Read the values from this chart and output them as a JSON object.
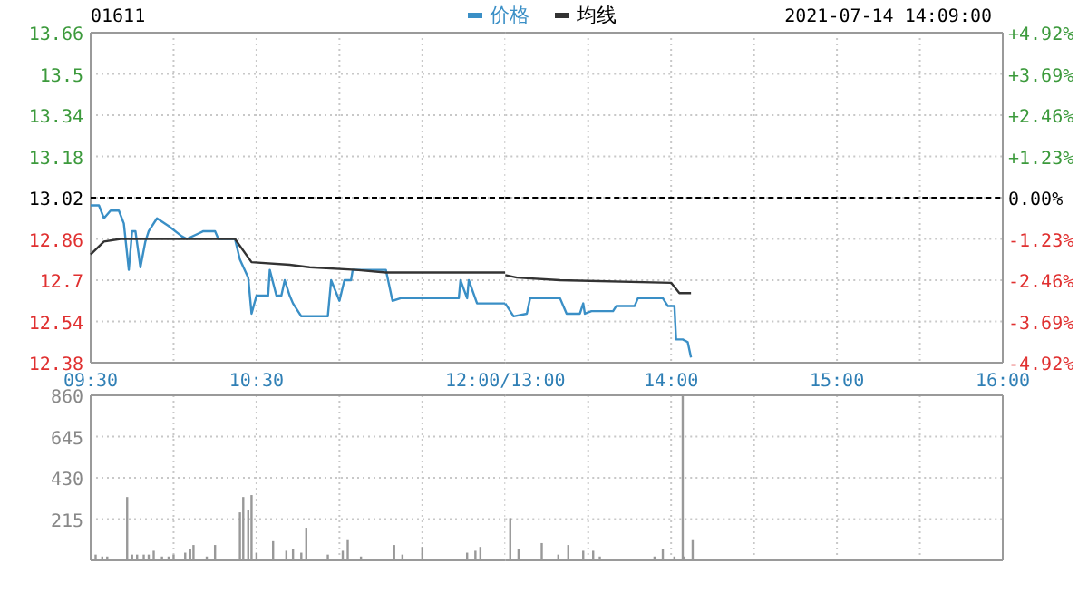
{
  "chart_data": [
    {
      "type": "line",
      "title": "01611",
      "legend": "top",
      "grid": true,
      "xlim": [
        9.5,
        12
      ],
      "xticks": [
        {
          "value": 9.5,
          "label": "09:30"
        },
        {
          "value": 10,
          "label": null
        },
        {
          "value": 10.5,
          "label": "10:30"
        },
        {
          "value": 11,
          "label": null
        },
        {
          "value": 11.5,
          "label": null
        },
        {
          "value": 12,
          "label": "12:00/13:00"
        }
      ],
      "ylim": [
        12.38,
        13.66
      ],
      "yticks": [
        12.38,
        12.54,
        12.7,
        12.86,
        13.02,
        13.18,
        13.34,
        13.5,
        13.66
      ],
      "ref_lines": [
        {
          "axis": "y",
          "value": 13.02,
          "color": "#000000",
          "line_style": "dashed"
        }
      ],
      "series": [
        {
          "name": "价格",
          "color": "#3a8fc6",
          "x": [
            9.5,
            9.55,
            9.58,
            9.62,
            9.67,
            9.7,
            9.73,
            9.75,
            9.77,
            9.8,
            9.83,
            9.85,
            9.9,
            9.97,
            10.05,
            10.08,
            10.18,
            10.25,
            10.27,
            10.37,
            10.4,
            10.45,
            10.47,
            10.5,
            10.57,
            10.58,
            10.62,
            10.65,
            10.67,
            10.7,
            10.72,
            10.77,
            10.93,
            10.95,
            11,
            11.03,
            11.07,
            11.08,
            11.28,
            11.32,
            11.37,
            11.72,
            11.73,
            11.77,
            11.78,
            11.83,
            12
          ],
          "values": [
            12.99,
            12.99,
            12.94,
            12.97,
            12.97,
            12.92,
            12.74,
            12.89,
            12.89,
            12.75,
            12.85,
            12.89,
            12.94,
            12.91,
            12.87,
            12.86,
            12.89,
            12.89,
            12.86,
            12.86,
            12.78,
            12.71,
            12.57,
            12.64,
            12.64,
            12.74,
            12.64,
            12.64,
            12.7,
            12.64,
            12.61,
            12.56,
            12.56,
            12.7,
            12.62,
            12.7,
            12.7,
            12.74,
            12.74,
            12.62,
            12.63,
            12.63,
            12.7,
            12.63,
            12.7,
            12.61,
            12.61
          ]
        },
        {
          "name": "均线",
          "color": "#333333",
          "x": [
            9.5,
            9.58,
            9.68,
            10.37,
            10.47,
            10.7,
            10.82,
            11.1,
            11.28,
            12
          ],
          "values": [
            12.8,
            12.85,
            12.86,
            12.86,
            12.77,
            12.76,
            12.75,
            12.74,
            12.73,
            12.73
          ]
        }
      ]
    },
    {
      "type": "line",
      "subtitle": "2021-07-14 14:09:00",
      "grid": true,
      "tick_labels": "x",
      "xlim": [
        13,
        16
      ],
      "xticks": [
        {
          "value": 13.5,
          "label": null
        },
        {
          "value": 14,
          "label": "14:00"
        },
        {
          "value": 14.5,
          "label": null
        },
        {
          "value": 15,
          "label": "15:00"
        },
        {
          "value": 15.5,
          "label": null
        },
        {
          "value": 16,
          "label": "16:00"
        }
      ],
      "ylim": [
        12.38,
        13.66
      ],
      "yticks": [
        12.38,
        12.54,
        12.7,
        12.86,
        13.02,
        13.18,
        13.34,
        13.5,
        13.66
      ],
      "y2lim": [
        -4.92,
        4.92
      ],
      "y2ticks": [
        {
          "value": -4.92,
          "label": "-4.92%"
        },
        {
          "value": -3.69,
          "label": "-3.69%"
        },
        {
          "value": -2.46,
          "label": "-2.46%"
        },
        {
          "value": -1.23,
          "label": "-1.23%"
        },
        {
          "value": 0,
          "label": "0.00%"
        },
        {
          "value": 1.23,
          "label": "+1.23%"
        },
        {
          "value": 2.46,
          "label": "+2.46%"
        },
        {
          "value": 3.69,
          "label": "+3.69%"
        },
        {
          "value": 4.92,
          "label": "+4.92%"
        }
      ],
      "ref_lines": [
        {
          "axis": "y",
          "value": 13.02,
          "color": "#000000",
          "line_style": "dashed"
        }
      ],
      "series": [
        {
          "color": "#3a8fc6",
          "x": [
            13,
            13.05,
            13.13,
            13.15,
            13.33,
            13.37,
            13.45,
            13.47,
            13.48,
            13.52,
            13.65,
            13.67,
            13.78,
            13.8,
            13.95,
            13.98,
            14.02,
            14.03,
            14.07,
            14.1,
            14.12
          ],
          "values": [
            12.61,
            12.56,
            12.57,
            12.63,
            12.63,
            12.57,
            12.57,
            12.61,
            12.57,
            12.58,
            12.58,
            12.6,
            12.6,
            12.63,
            12.63,
            12.6,
            12.6,
            12.47,
            12.47,
            12.46,
            12.4
          ]
        },
        {
          "color": "#333333",
          "x": [
            13,
            13.07,
            13.33,
            14,
            14.05,
            14.12
          ],
          "values": [
            12.72,
            12.71,
            12.7,
            12.69,
            12.65,
            12.65
          ]
        }
      ]
    },
    {
      "type": "bar",
      "color": "#999999",
      "grid": true,
      "tick_labels": "y",
      "xlim": [
        9.5,
        12
      ],
      "xticks": [
        {
          "value": 9.5,
          "label": null
        },
        {
          "value": 10,
          "label": null
        },
        {
          "value": 10.5,
          "label": null
        },
        {
          "value": 11,
          "label": null
        },
        {
          "value": 11.5,
          "label": null
        },
        {
          "value": 12,
          "label": null
        }
      ],
      "ylim": [
        0,
        860
      ],
      "yticks": [
        215,
        430,
        645,
        860
      ],
      "x": [
        9.53,
        9.57,
        9.6,
        9.72,
        9.75,
        9.78,
        9.82,
        9.85,
        9.88,
        9.93,
        9.97,
        10,
        10.07,
        10.1,
        10.12,
        10.2,
        10.25,
        10.4,
        10.42,
        10.45,
        10.47,
        10.5,
        10.6,
        10.68,
        10.72,
        10.77,
        10.8,
        10.93,
        11.02,
        11.05,
        11.13,
        11.33,
        11.38,
        11.5,
        11.77,
        11.82,
        11.85
      ],
      "values": [
        30,
        20,
        20,
        330,
        30,
        30,
        30,
        30,
        50,
        20,
        20,
        30,
        40,
        60,
        80,
        20,
        80,
        250,
        330,
        260,
        340,
        40,
        100,
        50,
        60,
        40,
        170,
        30,
        50,
        110,
        20,
        80,
        30,
        70,
        40,
        50,
        70
      ]
    },
    {
      "type": "bar",
      "color": "#999999",
      "grid": true,
      "tick_labels": false,
      "xlim": [
        13,
        16
      ],
      "xticks": [
        {
          "value": 13.5,
          "label": null
        },
        {
          "value": 14,
          "label": null
        },
        {
          "value": 14.5,
          "label": null
        },
        {
          "value": 15,
          "label": null
        },
        {
          "value": 15.5,
          "label": null
        },
        {
          "value": 16,
          "label": null
        }
      ],
      "ylim": [
        0,
        860
      ],
      "yticks": [
        215,
        430,
        645,
        860
      ],
      "x": [
        13.03,
        13.08,
        13.22,
        13.32,
        13.38,
        13.47,
        13.53,
        13.57,
        13.9,
        13.95,
        14.02,
        14.07,
        14.08,
        14.13
      ],
      "values": [
        220,
        60,
        90,
        30,
        80,
        50,
        50,
        20,
        20,
        60,
        20,
        860,
        20,
        110
      ]
    }
  ]
}
